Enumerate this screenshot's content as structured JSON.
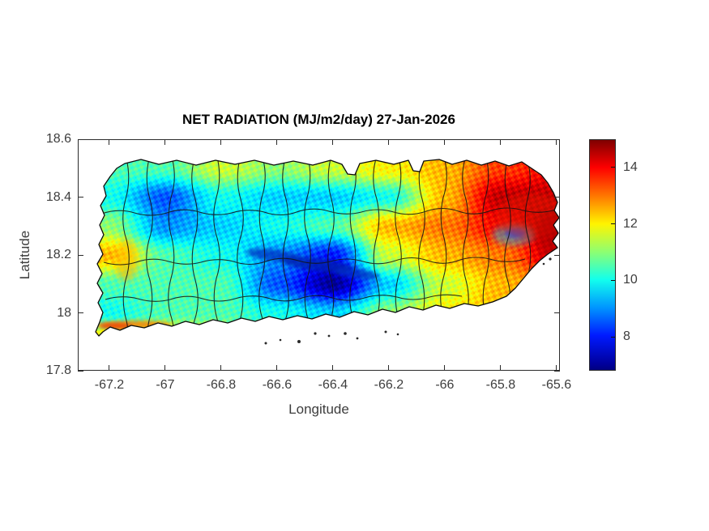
{
  "chart_data": {
    "type": "heatmap",
    "title": "NET RADIATION (MJ/m2/day) 27-Jan-2026",
    "xlabel": "Longitude",
    "ylabel": "Latitude",
    "region": "Puerto Rico with municipal boundaries overlaid",
    "xlim": [
      -67.313,
      -65.588
    ],
    "ylim": [
      17.8,
      18.6
    ],
    "xticks": [
      -67.2,
      -67,
      -66.8,
      -66.6,
      -66.4,
      -66.2,
      -66,
      -65.8,
      -65.6
    ],
    "xtick_labels": [
      "-67.2",
      "-67",
      "-66.8",
      "-66.6",
      "-66.4",
      "-66.2",
      "-66",
      "-65.8",
      "-65.6"
    ],
    "yticks": [
      18.6,
      18.4,
      18.2,
      18,
      17.8
    ],
    "ytick_labels": [
      "18.6",
      "18.4",
      "18.2",
      "18",
      "17.8"
    ],
    "grid_on": false,
    "colormap": "jet",
    "colorbar": {
      "position": "right",
      "min": 6.8,
      "max": 15.0,
      "ticks": [
        8,
        10,
        12,
        14
      ],
      "tick_labels": [
        "8",
        "10",
        "12",
        "14"
      ]
    },
    "grid": {
      "units": "MJ/m2/day",
      "lon": [
        -67.2,
        -67.0,
        -66.8,
        -66.6,
        -66.4,
        -66.2,
        -66.0,
        -65.8,
        -65.6
      ],
      "lat": [
        18.5,
        18.4,
        18.3,
        18.2,
        18.1,
        18.0,
        17.9
      ],
      "values": [
        [
          10.5,
          10.5,
          11.5,
          11.0,
          11.5,
          12.0,
          12.5,
          13.5,
          14.0
        ],
        [
          10.0,
          8.5,
          10.0,
          9.5,
          9.5,
          10.0,
          12.5,
          14.5,
          14.5
        ],
        [
          11.0,
          9.0,
          9.5,
          10.0,
          10.5,
          12.5,
          13.0,
          14.0,
          14.8
        ],
        [
          12.5,
          10.5,
          10.0,
          9.0,
          8.0,
          11.5,
          12.5,
          13.0,
          14.5
        ],
        [
          10.5,
          10.5,
          10.5,
          8.5,
          7.0,
          9.5,
          11.5,
          12.5,
          13.0
        ],
        [
          10.0,
          10.5,
          10.5,
          10.0,
          9.5,
          11.0,
          12.0,
          12.5,
          12.5
        ],
        [
          12.5,
          13.0,
          12.0,
          10.5,
          10.0,
          11.0,
          12.5,
          12.5,
          12.5
        ]
      ]
    },
    "annotations": {
      "low_zone": "dark blue band along Cordillera Central (approx -66.65 to -66.3, lat 18.1-18.17)",
      "high_zone": "dark red maximum over eastern/northeastern Puerto Rico (lon > -66.0)"
    }
  }
}
